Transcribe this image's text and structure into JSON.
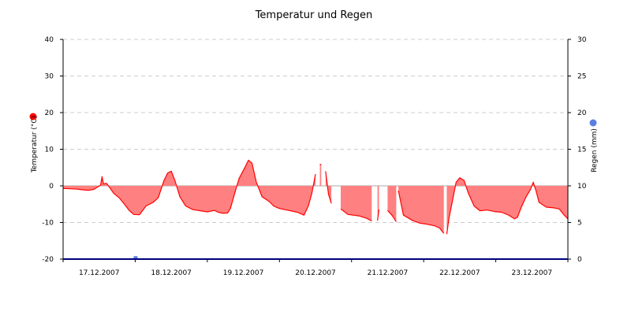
{
  "chart_data": {
    "type": "area",
    "title": "Temperatur und Regen",
    "ylabel": "Temperatur (°C)",
    "y2label": "Regen (mm)",
    "ylim": [
      -20,
      40
    ],
    "y2lim": [
      0,
      30
    ],
    "yticks": [
      40,
      30,
      20,
      10,
      0,
      -10,
      -20
    ],
    "y2ticks": [
      30,
      25,
      20,
      15,
      10,
      5,
      0
    ],
    "xlim": [
      0,
      7
    ],
    "xtick_labels": [
      "17.12.2007",
      "18.12.2007",
      "19.12.2007",
      "20.12.2007",
      "21.12.2007",
      "22.12.2007",
      "23.12.2007"
    ],
    "grid": true,
    "colors": {
      "temperature": "#ff0000",
      "temperature_fill": "#ff8080",
      "rain": "#5b7fe0",
      "axis": "#00007f",
      "grid": "#cccccc"
    },
    "series": [
      {
        "name": "Temperatur (°C)",
        "axis": "left",
        "segments": [
          [
            [
              0.0,
              -0.7
            ],
            [
              0.1,
              -0.8
            ],
            [
              0.2,
              -0.9
            ],
            [
              0.28,
              -1.1
            ],
            [
              0.35,
              -1.2
            ],
            [
              0.42,
              -1.0
            ],
            [
              0.48,
              -0.3
            ],
            [
              0.52,
              0.2
            ],
            [
              0.54,
              2.5
            ],
            [
              0.56,
              0.5
            ],
            [
              0.6,
              0.7
            ],
            [
              0.64,
              -0.3
            ],
            [
              0.7,
              -2.0
            ],
            [
              0.78,
              -3.3
            ],
            [
              0.85,
              -5.0
            ],
            [
              0.92,
              -6.8
            ],
            [
              0.98,
              -7.8
            ],
            [
              1.06,
              -7.9
            ],
            [
              1.15,
              -5.5
            ],
            [
              1.25,
              -4.5
            ],
            [
              1.32,
              -3.2
            ],
            [
              1.4,
              1.5
            ],
            [
              1.45,
              3.5
            ],
            [
              1.5,
              4.0
            ],
            [
              1.55,
              1.5
            ],
            [
              1.62,
              -3.0
            ],
            [
              1.7,
              -5.5
            ],
            [
              1.8,
              -6.5
            ],
            [
              1.9,
              -6.8
            ],
            [
              2.0,
              -7.1
            ],
            [
              2.1,
              -6.7
            ],
            [
              2.15,
              -7.2
            ],
            [
              2.22,
              -7.5
            ],
            [
              2.28,
              -7.4
            ],
            [
              2.32,
              -6.2
            ],
            [
              2.38,
              -2.0
            ],
            [
              2.44,
              2.0
            ],
            [
              2.52,
              5.0
            ],
            [
              2.57,
              7.0
            ],
            [
              2.62,
              6.2
            ],
            [
              2.68,
              1.0
            ],
            [
              2.76,
              -3.0
            ],
            [
              2.86,
              -4.3
            ],
            [
              2.92,
              -5.5
            ],
            [
              3.0,
              -6.2
            ],
            [
              3.1,
              -6.6
            ],
            [
              3.18,
              -6.9
            ],
            [
              3.26,
              -7.3
            ],
            [
              3.34,
              -8.0
            ],
            [
              3.4,
              -5.5
            ],
            [
              3.45,
              -2.0
            ],
            [
              3.5,
              3.2
            ]
          ],
          [
            [
              3.56,
              5.9
            ],
            [
              3.58,
              5.8
            ]
          ],
          [
            [
              3.64,
              4.0
            ],
            [
              3.68,
              -2.3
            ],
            [
              3.72,
              -4.8
            ]
          ],
          [
            [
              3.85,
              -6.3
            ],
            [
              3.95,
              -7.8
            ],
            [
              4.1,
              -8.2
            ],
            [
              4.2,
              -8.8
            ],
            [
              4.28,
              -9.6
            ]
          ],
          [
            [
              4.36,
              -9.5
            ],
            [
              4.38,
              -6.5
            ]
          ],
          [
            [
              4.5,
              -6.7
            ],
            [
              4.56,
              -8.0
            ],
            [
              4.62,
              -9.8
            ]
          ],
          [
            [
              4.65,
              -1.3
            ],
            [
              4.72,
              -8.0
            ],
            [
              4.85,
              -9.5
            ],
            [
              4.95,
              -10.2
            ],
            [
              5.05,
              -10.5
            ],
            [
              5.15,
              -10.9
            ],
            [
              5.22,
              -11.5
            ],
            [
              5.28,
              -13.0
            ]
          ],
          [
            [
              5.32,
              -13.2
            ],
            [
              5.35,
              -9.0
            ],
            [
              5.4,
              -4.0
            ],
            [
              5.45,
              1.0
            ],
            [
              5.5,
              2.2
            ],
            [
              5.56,
              1.5
            ],
            [
              5.62,
              -2.0
            ],
            [
              5.7,
              -5.5
            ],
            [
              5.78,
              -6.8
            ],
            [
              5.88,
              -6.6
            ],
            [
              5.98,
              -7.0
            ],
            [
              6.08,
              -7.2
            ],
            [
              6.18,
              -8.0
            ],
            [
              6.26,
              -9.0
            ],
            [
              6.3,
              -8.6
            ],
            [
              6.35,
              -6.0
            ],
            [
              6.42,
              -3.0
            ],
            [
              6.48,
              -1.0
            ],
            [
              6.52,
              1.0
            ],
            [
              6.56,
              -1.5
            ],
            [
              6.6,
              -4.5
            ],
            [
              6.7,
              -5.8
            ],
            [
              6.8,
              -6.0
            ],
            [
              6.88,
              -6.3
            ],
            [
              6.95,
              -8.0
            ],
            [
              7.0,
              -9.0
            ]
          ]
        ]
      },
      {
        "name": "Regen (mm)",
        "axis": "right",
        "points": [
          [
            1.0,
            0.4
          ]
        ]
      }
    ]
  }
}
